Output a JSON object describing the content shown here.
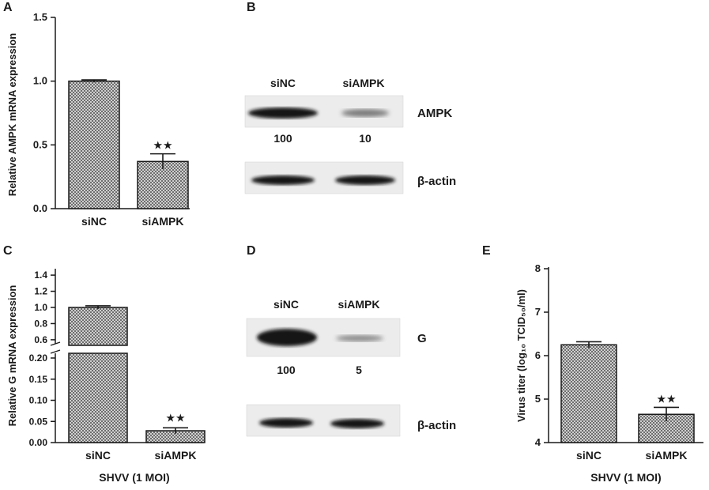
{
  "panels": {
    "a": "A",
    "b": "B",
    "c": "C",
    "d": "D",
    "e": "E"
  },
  "chart_data": [
    {
      "panel": "A",
      "type": "bar",
      "categories": [
        "siNC",
        "siAMPK"
      ],
      "values": [
        1.0,
        0.37
      ],
      "errors": [
        0.01,
        0.06
      ],
      "significance": [
        "",
        "★★"
      ],
      "ylabel": "Relative AMPK mRNA expression",
      "xlabel": "",
      "ylim": [
        0,
        1.5
      ],
      "yticks": [
        "0.0",
        "0.5",
        "1.0",
        "1.5"
      ]
    },
    {
      "panel": "C",
      "type": "bar",
      "broken_axis": true,
      "categories": [
        "siNC",
        "siAMPK"
      ],
      "values": [
        1.0,
        0.028
      ],
      "errors": [
        0.02,
        0.007
      ],
      "significance": [
        "",
        "★★"
      ],
      "ylabel": "Relative G mRNA expression",
      "xlabel": "SHVV (1 MOI)",
      "upper_ticks": [
        "0.6",
        "0.8",
        "1.0",
        "1.2",
        "1.4"
      ],
      "lower_ticks": [
        "0.00",
        "0.05",
        "0.10",
        "0.15",
        "0.20"
      ],
      "upper_range": [
        0.55,
        1.45
      ],
      "lower_range": [
        0,
        0.2
      ]
    },
    {
      "panel": "E",
      "type": "bar",
      "categories": [
        "siNC",
        "siAMPK"
      ],
      "values": [
        6.25,
        4.65
      ],
      "errors": [
        0.07,
        0.16
      ],
      "significance": [
        "",
        "★★"
      ],
      "ylabel": "Virus titer (log₁₀ TCID₅₀/ml)",
      "xlabel": "SHVV (1 MOI)",
      "ylim": [
        4,
        8
      ],
      "yticks": [
        "4",
        "5",
        "6",
        "7",
        "8"
      ]
    }
  ],
  "blots": [
    {
      "panel": "B",
      "lanes": [
        "siNC",
        "siAMPK"
      ],
      "rows": [
        {
          "label": "AMPK",
          "intensity": [
            1.0,
            0.35
          ],
          "quant": [
            "100",
            "10"
          ]
        },
        {
          "label": "β-actin",
          "intensity": [
            1.0,
            0.95
          ],
          "quant": []
        }
      ]
    },
    {
      "panel": "D",
      "lanes": [
        "siNC",
        "siAMPK"
      ],
      "rows": [
        {
          "label": "G",
          "intensity": [
            1.0,
            0.3
          ],
          "quant": [
            "100",
            "5"
          ]
        },
        {
          "label": "β-actin",
          "intensity": [
            1.0,
            0.95
          ],
          "quant": []
        }
      ]
    }
  ],
  "colors": {
    "bar_pattern": "#9a9a9a",
    "band": "#141414",
    "membrane": "#ececec",
    "axis": "#1a1a1a"
  }
}
